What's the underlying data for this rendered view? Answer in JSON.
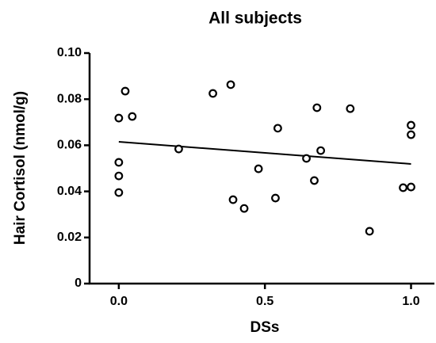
{
  "chart_data": {
    "type": "scatter",
    "title": "All subjects",
    "xlabel": "DSs",
    "ylabel": "Hair Cortisol (nmol/g)",
    "x": [
      0,
      0,
      0,
      0,
      0.022,
      0.046,
      0.205,
      0.322,
      0.383,
      0.391,
      0.429,
      0.478,
      0.536,
      0.544,
      0.642,
      0.669,
      0.678,
      0.691,
      0.792,
      0.858,
      0.973,
      1.0,
      1.0,
      1.0
    ],
    "values": [
      0.0718,
      0.0526,
      0.0467,
      0.0395,
      0.0835,
      0.0725,
      0.0584,
      0.0825,
      0.0863,
      0.0364,
      0.0326,
      0.0498,
      0.0371,
      0.0674,
      0.0543,
      0.0447,
      0.0763,
      0.0577,
      0.0759,
      0.0227,
      0.0416,
      0.0419,
      0.0687,
      0.0646
    ],
    "color": "#000000",
    "fit": {
      "x": [
        0,
        1
      ],
      "values": [
        0.0615,
        0.0519
      ]
    },
    "xlim": [
      -0.1,
      1.08
    ],
    "ylim": [
      0,
      0.1
    ],
    "xticks": [
      {
        "value": 0,
        "label": "0.0"
      },
      0.5,
      {
        "value": 1,
        "label": "1.0"
      }
    ],
    "yticks": [
      0,
      0.02,
      0.04,
      0.06,
      0.08,
      {
        "value": 0.1,
        "label": "0.10"
      }
    ],
    "grid": false
  }
}
